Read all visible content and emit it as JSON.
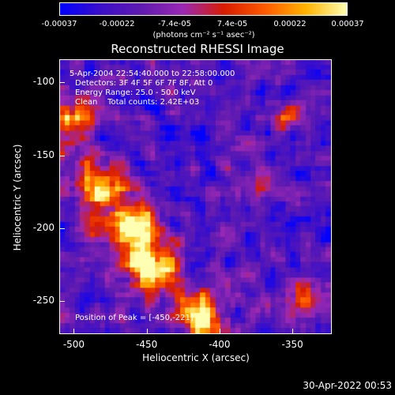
{
  "chart_data": {
    "type": "heatmap",
    "title": "Reconstructed RHESSI Image",
    "xlabel": "Heliocentric X (arcsec)",
    "ylabel": "Heliocentric Y (arcsec)",
    "xlim": [
      -510,
      -323
    ],
    "ylim": [
      -273,
      -84
    ],
    "x_ticks": [
      -500,
      -450,
      -400,
      -350
    ],
    "y_ticks": [
      -100,
      -150,
      -200,
      -250
    ],
    "colorbar": {
      "range": [
        -0.00037,
        0.00037
      ],
      "ticks": [
        "-0.00037",
        "-0.00022",
        "-7.4e-05",
        "7.4e-05",
        "0.00022",
        "0.00037"
      ],
      "unit_label": "(photons cm⁻² s⁻¹ asec⁻²)",
      "colors": [
        "#0000ff",
        "#3c0fc8",
        "#601bb0",
        "#9a28b4",
        "#d81c00",
        "#ff5a00",
        "#ffb400",
        "#ffffb4"
      ]
    },
    "annotations": [
      "5-Apr-2004 22:54:40.000 to 22:58:00.000",
      "Detectors: 3F 4F 5F 6F 7F 8F, Att 0",
      "Energy Range: 25.0 - 50.0 keV",
      "Clean    Total counts: 2.42E+03"
    ],
    "peak_label": "Position of Peak = [-450,-221]",
    "peak": [
      -450,
      -221
    ]
  },
  "timestamp": "30-Apr-2022 00:53"
}
